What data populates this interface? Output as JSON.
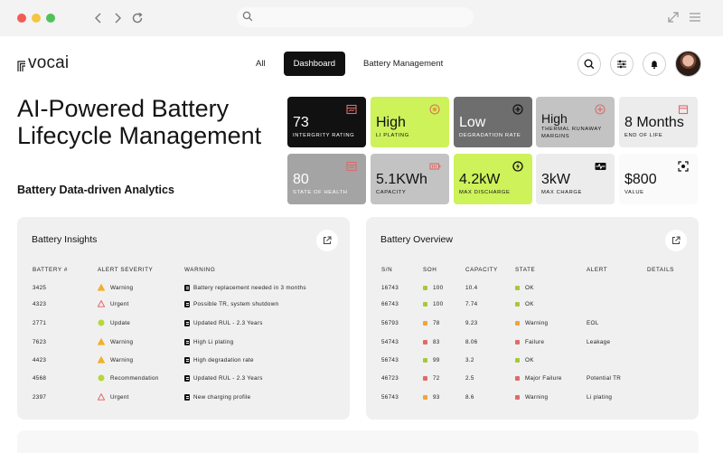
{
  "chrome": {
    "icons": [
      "back-icon",
      "forward-icon",
      "reload-icon",
      "search-icon",
      "expand-icon",
      "menu-icon"
    ]
  },
  "brand": {
    "name": "vocai"
  },
  "nav": {
    "tabs": [
      {
        "label": "All",
        "active": false
      },
      {
        "label": "Dashboard",
        "active": true
      },
      {
        "label": "Battery Management",
        "active": false
      }
    ]
  },
  "hero": {
    "title": "AI-Powered Battery Lifecycle Management",
    "subtitle": "Battery Data-driven Analytics"
  },
  "metrics": [
    {
      "value": "73",
      "label": "Intergrity Rating",
      "icon": "battery-chart-icon",
      "accent": "#e06a6a"
    },
    {
      "value": "High",
      "label": "Li Plating",
      "icon": "alert-circle-icon",
      "accent": "#e06a6a"
    },
    {
      "value": "Low",
      "label": "Degradation Rate",
      "icon": "plus-circle-icon",
      "accent": "#111111"
    },
    {
      "value": "High",
      "label": "Thermal Runaway Margins",
      "icon": "plus-circle-icon",
      "accent": "#e06a6a"
    },
    {
      "value": "8 Months",
      "label": "End of Life",
      "icon": "calendar-icon",
      "accent": "#e06a6a"
    },
    {
      "value": "80",
      "label": "State of Health",
      "icon": "battery-chart-icon",
      "accent": "#e06a6a"
    },
    {
      "value": "5.1KWh",
      "label": "Capacity",
      "icon": "battery-icon",
      "accent": "#e06a6a"
    },
    {
      "value": "4.2kW",
      "label": "Max Discharge",
      "icon": "bolt-circle-icon",
      "accent": "#111111"
    },
    {
      "value": "3kW",
      "label": "Max Charge",
      "icon": "pulse-icon",
      "accent": "#111111"
    },
    {
      "value": "$800",
      "label": "Value",
      "icon": "focus-icon",
      "accent": "#111111"
    }
  ],
  "insights": {
    "title": "Battery Insights",
    "columns": [
      "Battery #",
      "Alert Severity",
      "Warning"
    ],
    "rows": [
      {
        "battery": "3425",
        "severity": "Warning",
        "warning": "Battery replacement needed in 3 months"
      },
      {
        "battery": "4323",
        "severity": "Urgent",
        "warning": "Possible TR, system shutdown"
      },
      {
        "battery": "2771",
        "severity": "Update",
        "warning": "Updated RUL - 2.3 Years"
      },
      {
        "battery": "7623",
        "severity": "Warning",
        "warning": "High Li plating"
      },
      {
        "battery": "4423",
        "severity": "Warning",
        "warning": "High degradation rate"
      },
      {
        "battery": "4568",
        "severity": "Recommendation",
        "warning": "Updated RUL - 2.3 Years"
      },
      {
        "battery": "2397",
        "severity": "Urgent",
        "warning": "New charging profile"
      }
    ],
    "severity_colors": {
      "Warning": "#f0b02a",
      "Urgent": "#e25b5b",
      "Update": "#b7d83a",
      "Recommendation": "#b7d83a"
    }
  },
  "overview": {
    "title": "Battery Overview",
    "columns": [
      "S/N",
      "SOH",
      "Capacity",
      "State",
      "Alert",
      "Details"
    ],
    "rows": [
      {
        "sn": "16743",
        "soh": "100",
        "capacity": "10.4",
        "state": "OK",
        "alert": "",
        "soh_color": "#a6c939",
        "state_color": "#a6c939"
      },
      {
        "sn": "66743",
        "soh": "100",
        "capacity": "7.74",
        "state": "OK",
        "alert": "",
        "soh_color": "#a6c939",
        "state_color": "#a6c939"
      },
      {
        "sn": "56793",
        "soh": "78",
        "capacity": "9.23",
        "state": "Warning",
        "alert": "EOL",
        "soh_color": "#f2a33a",
        "state_color": "#f2a33a"
      },
      {
        "sn": "54743",
        "soh": "83",
        "capacity": "8.06",
        "state": "Failure",
        "alert": "Leakage",
        "soh_color": "#e26a6a",
        "state_color": "#e26a6a"
      },
      {
        "sn": "56743",
        "soh": "99",
        "capacity": "3.2",
        "state": "OK",
        "alert": "",
        "soh_color": "#a6c939",
        "state_color": "#a6c939"
      },
      {
        "sn": "46723",
        "soh": "72",
        "capacity": "2.5",
        "state": "Major Failure",
        "alert": "Potential TR",
        "soh_color": "#e26a6a",
        "state_color": "#e26a6a"
      },
      {
        "sn": "56743",
        "soh": "93",
        "capacity": "8.6",
        "state": "Warning",
        "alert": "Li plating",
        "soh_color": "#f2a33a",
        "state_color": "#e26a6a"
      }
    ]
  }
}
